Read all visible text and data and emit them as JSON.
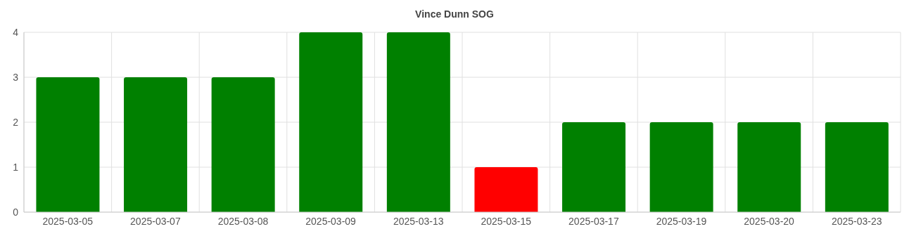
{
  "chart_data": {
    "type": "bar",
    "title": "Vince Dunn SOG",
    "categories": [
      "2025-03-05",
      "2025-03-07",
      "2025-03-08",
      "2025-03-09",
      "2025-03-13",
      "2025-03-15",
      "2025-03-17",
      "2025-03-19",
      "2025-03-20",
      "2025-03-23"
    ],
    "values": [
      3,
      3,
      3,
      4,
      4,
      1,
      2,
      2,
      2,
      2
    ],
    "colors": [
      "#008000",
      "#008000",
      "#008000",
      "#008000",
      "#008000",
      "#ff0000",
      "#008000",
      "#008000",
      "#008000",
      "#008000"
    ],
    "ylim": [
      0,
      4
    ],
    "yticks": [
      0,
      1,
      2,
      3,
      4
    ],
    "grid": true
  }
}
